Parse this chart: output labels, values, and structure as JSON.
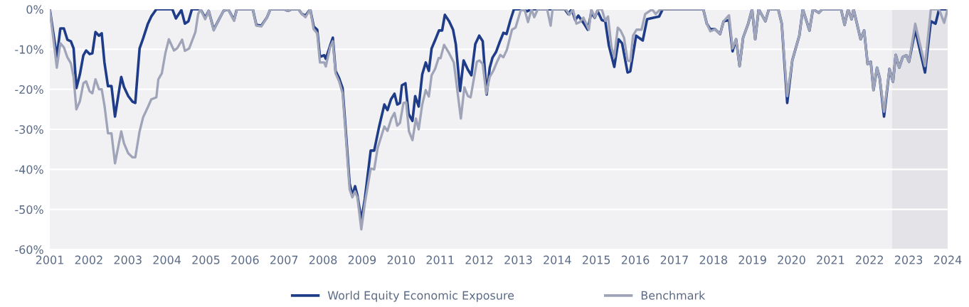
{
  "chart_data": {
    "type": "line",
    "ylim": [
      -60,
      0
    ],
    "xlim": [
      2001,
      2024
    ],
    "yticks": [
      {
        "value": -60,
        "label": "-60%"
      },
      {
        "value": -50,
        "label": "-50%"
      },
      {
        "value": -40,
        "label": "-40%"
      },
      {
        "value": -30,
        "label": "-30%"
      },
      {
        "value": -20,
        "label": "-20%"
      },
      {
        "value": -10,
        "label": "-10%"
      },
      {
        "value": 0,
        "label": "0%"
      }
    ],
    "xticks": [
      2001,
      2002,
      2003,
      2004,
      2005,
      2006,
      2007,
      2008,
      2009,
      2010,
      2011,
      2012,
      2013,
      2014,
      2015,
      2016,
      2017,
      2018,
      2019,
      2020,
      2021,
      2022,
      2023,
      2024
    ],
    "grid": "y",
    "legend": "bottom",
    "line_style": "solid",
    "marker": "none",
    "bands": [
      {
        "axis": "x",
        "from": 2022.58,
        "to": 2024,
        "label": null,
        "color": "#e3e3e8"
      }
    ],
    "series": [
      {
        "name": "World Equity Economic Exposure",
        "color": "#1f3c88",
        "x": [
          2001.0,
          2001.18,
          2001.27,
          2001.36,
          2001.45,
          2001.54,
          2001.61,
          2001.68,
          2001.77,
          2001.86,
          2001.93,
          2002.02,
          2002.09,
          2002.17,
          2002.26,
          2002.33,
          2002.4,
          2002.49,
          2002.58,
          2002.67,
          2002.83,
          2002.9,
          2003.01,
          2003.12,
          2003.19,
          2003.3,
          2003.39,
          2003.51,
          2003.6,
          2003.73,
          2004.14,
          2004.23,
          2004.37,
          2004.46,
          2004.55,
          2004.64,
          2004.86,
          2004.98,
          2005.07,
          2005.2,
          2005.31,
          2005.45,
          2005.57,
          2005.72,
          2005.79,
          2006.2,
          2006.29,
          2006.42,
          2006.56,
          2006.65,
          2007.01,
          2007.1,
          2007.19,
          2007.37,
          2007.46,
          2007.55,
          2007.67,
          2007.76,
          2007.85,
          2007.92,
          2008.03,
          2008.07,
          2008.18,
          2008.25,
          2008.32,
          2008.41,
          2008.5,
          2008.57,
          2008.68,
          2008.75,
          2008.82,
          2008.88,
          2008.98,
          2009.07,
          2009.22,
          2009.31,
          2009.43,
          2009.57,
          2009.65,
          2009.74,
          2009.83,
          2009.9,
          2009.97,
          2010.02,
          2010.11,
          2010.19,
          2010.29,
          2010.36,
          2010.45,
          2010.54,
          2010.63,
          2010.71,
          2010.78,
          2010.88,
          2010.97,
          2011.05,
          2011.12,
          2011.23,
          2011.33,
          2011.4,
          2011.51,
          2011.6,
          2011.71,
          2011.8,
          2011.9,
          2012.0,
          2012.09,
          2012.19,
          2012.27,
          2012.34,
          2012.43,
          2012.52,
          2012.62,
          2012.7,
          2012.8,
          2012.89,
          2013.11,
          2013.23,
          2013.32,
          2013.74,
          2013.83,
          2013.92,
          2014.19,
          2014.28,
          2014.37,
          2014.46,
          2014.54,
          2014.67,
          2014.78,
          2014.87,
          2014.96,
          2015.03,
          2015.14,
          2015.23,
          2015.32,
          2015.46,
          2015.57,
          2015.66,
          2015.8,
          2015.87,
          2016.02,
          2016.19,
          2016.3,
          2016.48,
          2016.61,
          2016.7,
          2017.74,
          2017.83,
          2017.92,
          2018.04,
          2018.17,
          2018.26,
          2018.4,
          2018.49,
          2018.58,
          2018.67,
          2018.76,
          2018.89,
          2018.99,
          2019.07,
          2019.16,
          2019.33,
          2019.42,
          2019.66,
          2019.75,
          2019.89,
          2020.02,
          2020.2,
          2020.29,
          2020.46,
          2020.55,
          2020.7,
          2020.79,
          2021.27,
          2021.36,
          2021.45,
          2021.54,
          2021.59,
          2021.77,
          2021.86,
          2021.95,
          2022.03,
          2022.1,
          2022.19,
          2022.26,
          2022.37,
          2022.51,
          2022.6,
          2022.67,
          2022.76,
          2022.85,
          2022.94,
          2023.01,
          2023.17,
          2023.42,
          2023.57,
          2023.69,
          2023.78,
          2023.91,
          2024.0
        ],
        "values": [
          0,
          -11.9,
          -4.8,
          -4.8,
          -7.6,
          -8,
          -9.8,
          -19.7,
          -16.3,
          -11.5,
          -10.3,
          -11.2,
          -11,
          -5.7,
          -6.6,
          -6,
          -13.3,
          -19.2,
          -19.2,
          -26.8,
          -16.9,
          -19.4,
          -21.7,
          -23.1,
          -23.4,
          -9.8,
          -7.3,
          -3.7,
          -1.8,
          0,
          0,
          -2.3,
          -0.2,
          -3.6,
          -3,
          0,
          0,
          -2.1,
          -0.4,
          -5.1,
          -3,
          -0.4,
          0,
          -2.7,
          0,
          0,
          -3.9,
          -4.1,
          -2.1,
          0,
          0,
          -0.4,
          0,
          0,
          -1.2,
          -1.6,
          0,
          -4.3,
          -5.1,
          -11.9,
          -11.5,
          -12.4,
          -9.1,
          -7.1,
          -15.4,
          -17.2,
          -19.7,
          -28.8,
          -43.5,
          -46.5,
          -44.2,
          -46.5,
          -52.7,
          -47.4,
          -35.3,
          -35.3,
          -29.6,
          -23.8,
          -25.2,
          -22.5,
          -21.1,
          -23.8,
          -23.4,
          -19,
          -18.5,
          -26.1,
          -27.9,
          -21.7,
          -24.3,
          -16.3,
          -13.3,
          -15.4,
          -9.8,
          -7.5,
          -5.3,
          -5.3,
          -1.4,
          -3,
          -5.1,
          -8.7,
          -20.4,
          -12.8,
          -15.1,
          -16.5,
          -8.7,
          -6.6,
          -8,
          -21.3,
          -14.6,
          -12.1,
          -10.7,
          -8.3,
          -5.9,
          -6.2,
          -2.7,
          0,
          0,
          -0.5,
          0,
          0,
          0,
          0,
          0,
          -1.2,
          0,
          -2.7,
          -1.6,
          -3.4,
          -5.1,
          -0.9,
          -2.1,
          -0.4,
          -2.7,
          -3,
          -9,
          -14.4,
          -7.5,
          -8.5,
          -15.8,
          -15.5,
          -6.6,
          -7.8,
          -2.5,
          -2.1,
          -1.8,
          0,
          0,
          -3.6,
          -5,
          -5,
          -6.2,
          -3,
          -2.7,
          -10.5,
          -7.5,
          -14.2,
          -7.1,
          -3.6,
          0,
          -7.5,
          0,
          -3,
          0,
          0,
          -3.6,
          -23.4,
          -12.8,
          -6.6,
          0,
          -5.3,
          0,
          -0.9,
          0,
          0,
          -3.9,
          0,
          -2.5,
          0,
          -7.5,
          -5.3,
          -13.7,
          -13.1,
          -20.2,
          -14.6,
          -17.2,
          -26.8,
          -14.9,
          -18.1,
          -11.4,
          -14.6,
          -11.9,
          -11.5,
          -13.1,
          -5.1,
          -15.8,
          -3,
          -3.6,
          0,
          0,
          0
        ]
      },
      {
        "name": "Benchmark",
        "color": "#a0a4b8",
        "x": [
          2001.0,
          2001.18,
          2001.27,
          2001.36,
          2001.45,
          2001.54,
          2001.61,
          2001.68,
          2001.77,
          2001.86,
          2001.93,
          2002.02,
          2002.09,
          2002.17,
          2002.26,
          2002.33,
          2002.4,
          2002.49,
          2002.58,
          2002.67,
          2002.83,
          2002.9,
          2003.01,
          2003.12,
          2003.19,
          2003.3,
          2003.39,
          2003.51,
          2003.6,
          2003.73,
          2003.78,
          2003.87,
          2003.96,
          2004.05,
          2004.18,
          2004.26,
          2004.39,
          2004.46,
          2004.57,
          2004.73,
          2004.8,
          2004.86,
          2004.98,
          2005.07,
          2005.2,
          2005.31,
          2005.45,
          2005.57,
          2005.72,
          2005.79,
          2006.2,
          2006.29,
          2006.42,
          2006.56,
          2006.65,
          2007.01,
          2007.1,
          2007.19,
          2007.37,
          2007.46,
          2007.55,
          2007.67,
          2007.76,
          2007.85,
          2007.92,
          2008.03,
          2008.07,
          2008.18,
          2008.25,
          2008.32,
          2008.41,
          2008.5,
          2008.57,
          2008.68,
          2008.75,
          2008.82,
          2008.88,
          2008.98,
          2009.07,
          2009.22,
          2009.31,
          2009.4,
          2009.57,
          2009.65,
          2009.75,
          2009.83,
          2009.9,
          2009.97,
          2010.06,
          2010.13,
          2010.2,
          2010.29,
          2010.38,
          2010.45,
          2010.54,
          2010.63,
          2010.71,
          2010.78,
          2010.87,
          2010.96,
          2011.01,
          2011.1,
          2011.23,
          2011.35,
          2011.53,
          2011.62,
          2011.71,
          2011.78,
          2011.94,
          2012.01,
          2012.09,
          2012.18,
          2012.27,
          2012.36,
          2012.45,
          2012.54,
          2012.62,
          2012.71,
          2012.84,
          2012.93,
          2013.06,
          2013.16,
          2013.25,
          2013.34,
          2013.41,
          2013.5,
          2013.74,
          2013.83,
          2013.88,
          2014.22,
          2014.31,
          2014.4,
          2014.49,
          2014.58,
          2014.67,
          2014.81,
          2014.87,
          2014.96,
          2015.05,
          2015.14,
          2015.23,
          2015.3,
          2015.39,
          2015.46,
          2015.55,
          2015.62,
          2015.71,
          2015.8,
          2015.87,
          2015.94,
          2016.03,
          2016.16,
          2016.25,
          2016.43,
          2016.52,
          2016.64,
          2017.74,
          2017.83,
          2017.92,
          2018.04,
          2018.17,
          2018.26,
          2018.4,
          2018.49,
          2018.58,
          2018.67,
          2018.76,
          2018.89,
          2018.99,
          2019.07,
          2019.16,
          2019.33,
          2019.42,
          2019.66,
          2019.75,
          2019.89,
          2020.02,
          2020.2,
          2020.29,
          2020.46,
          2020.55,
          2020.7,
          2020.79,
          2021.27,
          2021.36,
          2021.45,
          2021.54,
          2021.59,
          2021.77,
          2021.86,
          2021.95,
          2022.03,
          2022.1,
          2022.19,
          2022.26,
          2022.37,
          2022.51,
          2022.6,
          2022.67,
          2022.76,
          2022.85,
          2022.94,
          2023.01,
          2023.17,
          2023.42,
          2023.57,
          2023.78,
          2023.91,
          2024.0
        ],
        "values": [
          0,
          -14.6,
          -8.5,
          -9.5,
          -12,
          -13.5,
          -17,
          -25,
          -23,
          -18.5,
          -18,
          -20.5,
          -21,
          -17.5,
          -20,
          -20,
          -24,
          -31,
          -31,
          -38.5,
          -30.5,
          -33.5,
          -36,
          -37,
          -37,
          -30.5,
          -27,
          -24.5,
          -22.5,
          -22,
          -17.5,
          -16,
          -11,
          -7.5,
          -10.3,
          -9.8,
          -7.6,
          -10.4,
          -9.8,
          -5.7,
          -1.2,
          0,
          -2.5,
          -0.4,
          -5.3,
          -3,
          -0.4,
          0,
          -2.9,
          0,
          0,
          -4.1,
          -4.3,
          -2.1,
          0,
          0,
          -0.4,
          0,
          0,
          -1.2,
          -2,
          0,
          -5,
          -6,
          -13.3,
          -13.3,
          -14.3,
          -9.5,
          -8,
          -16,
          -18,
          -21,
          -30,
          -45,
          -47,
          -45.5,
          -47,
          -55,
          -48.5,
          -39.8,
          -40,
          -34.6,
          -29.3,
          -30.4,
          -27.3,
          -25.9,
          -29.1,
          -28.4,
          -23.4,
          -23.3,
          -30.5,
          -32.7,
          -27.3,
          -30,
          -23.8,
          -20.2,
          -21.8,
          -16.5,
          -14.9,
          -12.2,
          -12.2,
          -8.9,
          -11,
          -13.3,
          -27.3,
          -19.5,
          -21.7,
          -22,
          -13.1,
          -12.8,
          -13.7,
          -21.1,
          -16.9,
          -15.4,
          -13.3,
          -11.4,
          -12,
          -10.1,
          -5.1,
          -4.6,
          -0.4,
          0,
          -3.2,
          0,
          -2,
          0,
          0,
          -4.1,
          0,
          0,
          -1.4,
          0,
          -3.6,
          -3.2,
          -2.1,
          -5.1,
          0,
          -2,
          0,
          0,
          -2.9,
          -1.8,
          -9.6,
          -11.9,
          -4.6,
          -5.3,
          -7.1,
          -12.8,
          -13,
          -6.6,
          -5.1,
          -5.1,
          -1.2,
          0,
          -1.2,
          0,
          0,
          -3.6,
          -5.5,
          -5,
          -6.2,
          -3,
          -1.5,
          -9.8,
          -7.5,
          -14.2,
          -7.1,
          -3.6,
          0,
          -7.5,
          0,
          -3,
          0,
          0,
          -3.6,
          -21.7,
          -12.8,
          -6.6,
          0,
          -5.3,
          0,
          -0.9,
          0,
          0,
          -3.9,
          0,
          -2.5,
          0,
          -7.5,
          -5.3,
          -13.7,
          -13.1,
          -20.2,
          -14.6,
          -17.2,
          -25.6,
          -14.9,
          -18.1,
          -11.4,
          -14.6,
          -11.9,
          -11.5,
          -13.1,
          -3.6,
          -14.2,
          0,
          0,
          -3.4,
          0
        ]
      }
    ]
  }
}
